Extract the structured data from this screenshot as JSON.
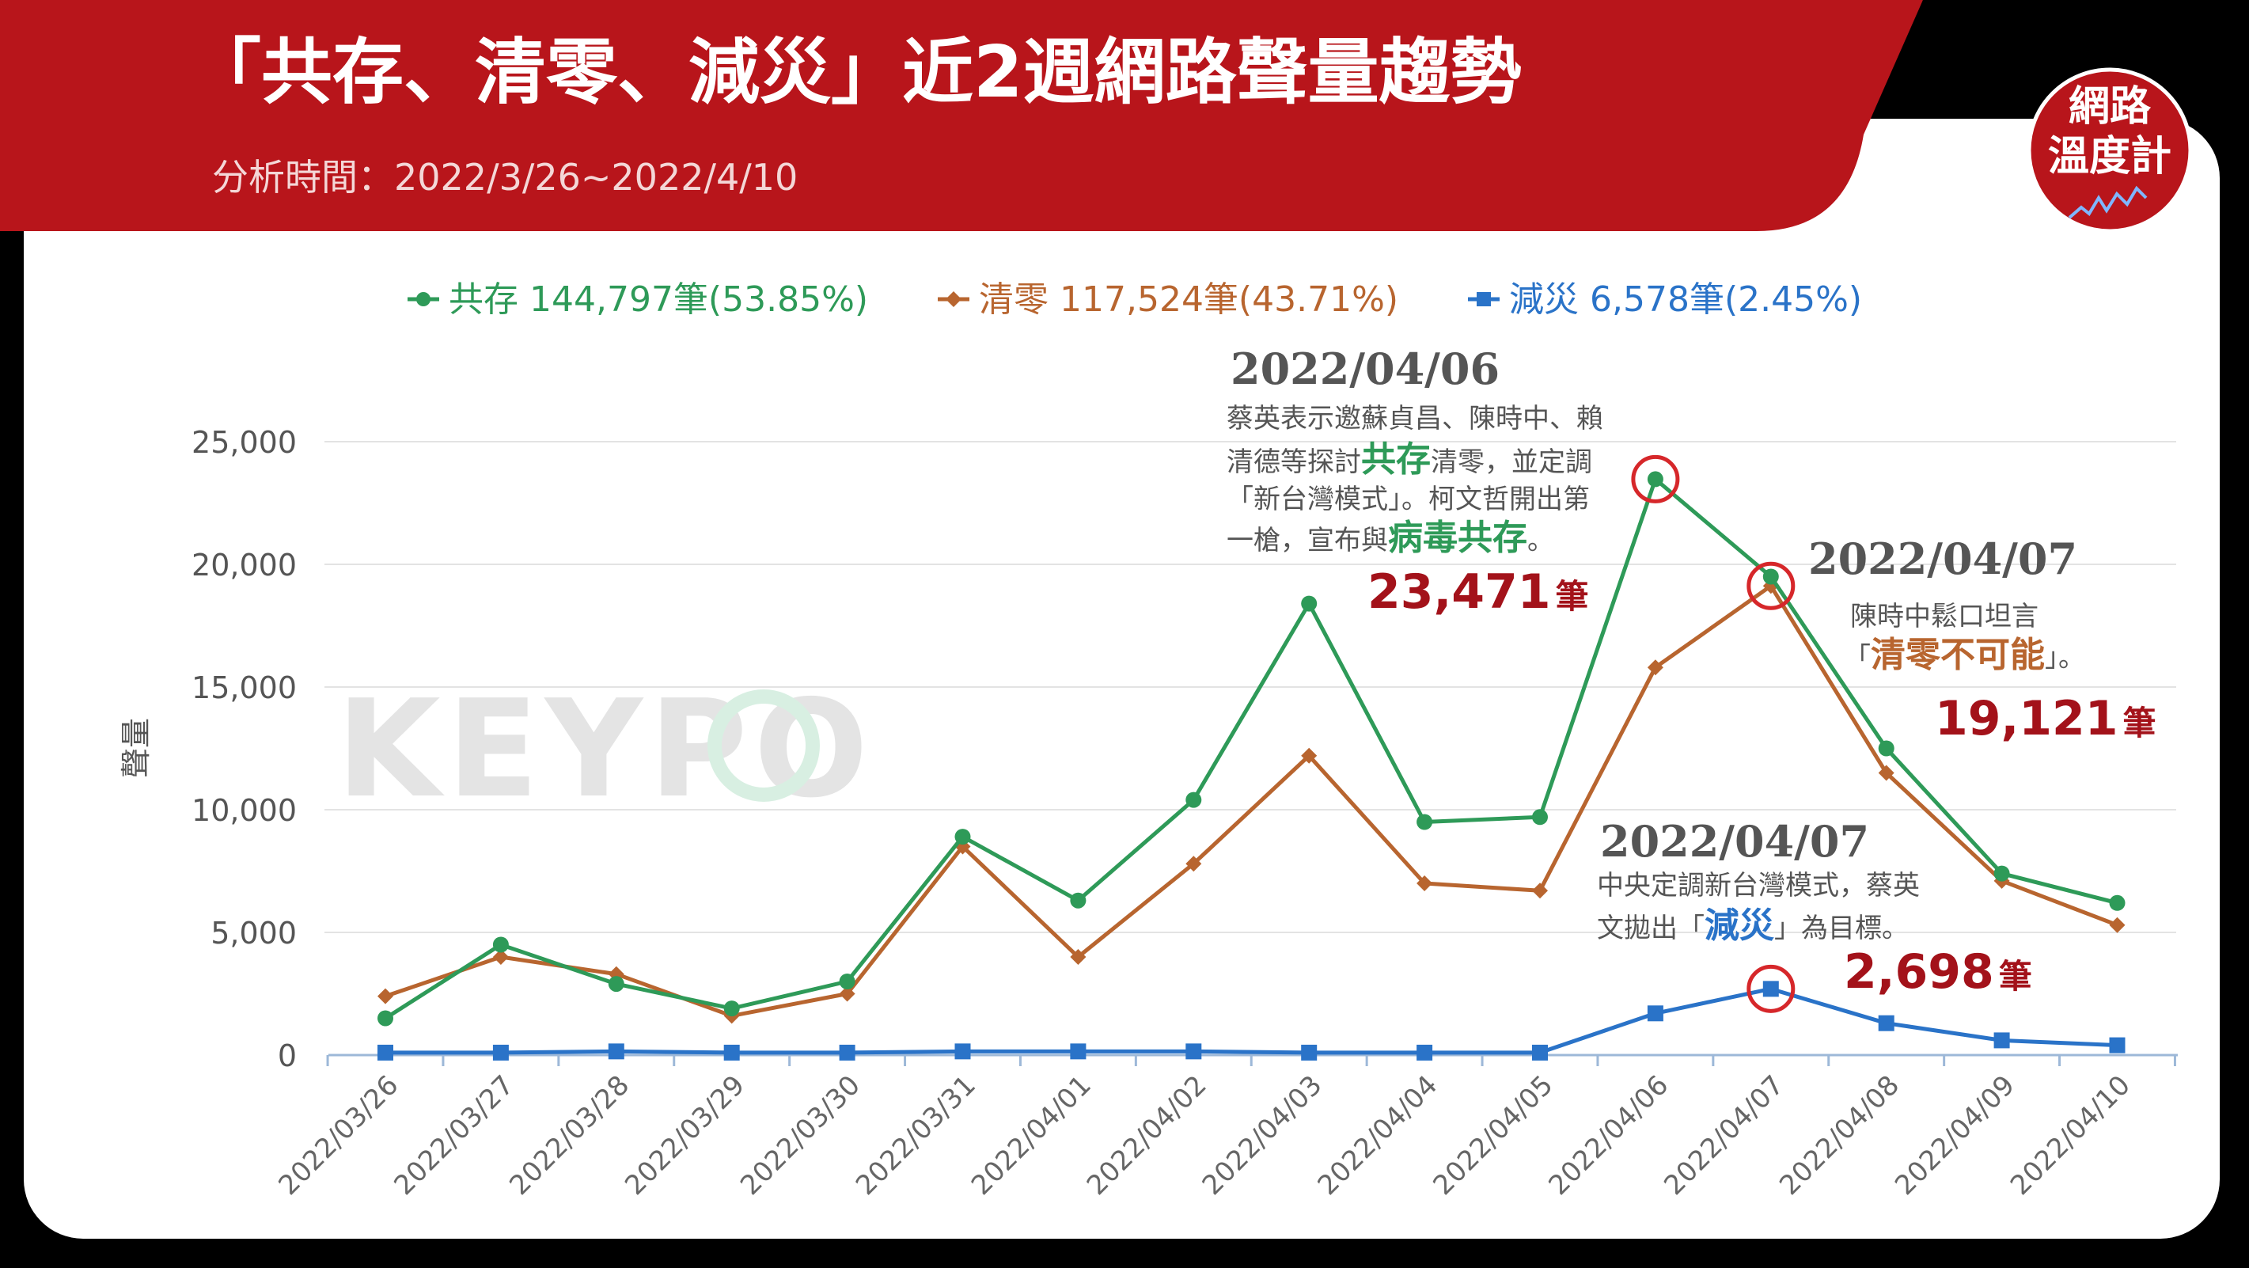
{
  "header": {
    "title": "「共存、清零、減災」近2週網路聲量趨勢",
    "subtitle": "分析時間：2022/3/26~2022/4/10"
  },
  "logo": {
    "line1": "網路",
    "line2": "溫度計"
  },
  "watermark": "KEYPO",
  "colors": {
    "coexist": "#2e9a58",
    "zero": "#b8652f",
    "mitigate": "#2a73c8",
    "brand_red": "#b8151b",
    "highlight_red": "#d6272a",
    "value_red": "#a3121a"
  },
  "legend": [
    {
      "label": "共存 144,797筆(53.85%)",
      "color": "#2e9a58",
      "marker": "circle"
    },
    {
      "label": "清零 117,524筆(43.71%)",
      "color": "#b8652f",
      "marker": "diamond"
    },
    {
      "label": "減災 6,578筆(2.45%)",
      "color": "#2a73c8",
      "marker": "square"
    }
  ],
  "chart_data": {
    "type": "line",
    "ylabel": "聲量",
    "ylim": [
      0,
      25000
    ],
    "yticks": [
      "0",
      "5,000",
      "10,000",
      "15,000",
      "20,000",
      "25,000"
    ],
    "categories": [
      "2022/03/26",
      "2022/03/27",
      "2022/03/28",
      "2022/03/29",
      "2022/03/30",
      "2022/03/31",
      "2022/04/01",
      "2022/04/02",
      "2022/04/03",
      "2022/04/04",
      "2022/04/05",
      "2022/04/06",
      "2022/04/07",
      "2022/04/08",
      "2022/04/09",
      "2022/04/10"
    ],
    "series": [
      {
        "name": "共存",
        "values": [
          1500,
          4500,
          2900,
          1900,
          3000,
          8900,
          6300,
          10400,
          18400,
          9500,
          9700,
          23471,
          19500,
          12500,
          7400,
          6200
        ]
      },
      {
        "name": "清零",
        "values": [
          2400,
          4000,
          3300,
          1600,
          2500,
          8500,
          4000,
          7800,
          12200,
          7000,
          6700,
          15800,
          19121,
          11500,
          7100,
          5300
        ]
      },
      {
        "name": "減災",
        "values": [
          100,
          100,
          150,
          100,
          100,
          150,
          150,
          150,
          100,
          100,
          100,
          1700,
          2698,
          1300,
          600,
          400
        ]
      }
    ],
    "grid": true,
    "legend_position": "top",
    "annotations": [
      {
        "date": "2022/04/06",
        "text_line1": "蔡英表示邀蘇貞昌、陳時中、賴",
        "text_line2_pre": "清德等探討",
        "text_line2_hl": "共存",
        "text_line2_post": "清零，並定調",
        "text_line3": "「新台灣模式」。柯文哲開出第",
        "text_line4_pre": "一槍，宣布與",
        "text_line4_hl": "病毒共存",
        "text_line4_post": "。",
        "value": "23,471",
        "unit": "筆"
      },
      {
        "date": "2022/04/07",
        "text_line1": "陳時中鬆口坦言",
        "text_line2_pre": "「",
        "text_line2_hl": "清零不可能",
        "text_line2_post": "」。",
        "value": "19,121",
        "unit": "筆"
      },
      {
        "date": "2022/04/07",
        "text_line1": "中央定調新台灣模式，蔡英",
        "text_line2_pre": "文拋出「",
        "text_line2_hl": "減災",
        "text_line2_post": "」為目標。",
        "value": "2,698",
        "unit": "筆"
      }
    ]
  }
}
